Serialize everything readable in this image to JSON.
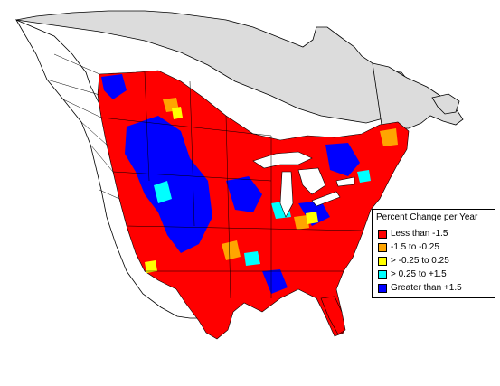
{
  "map": {
    "colors": {
      "canada_land": "#dcdcdc",
      "us_land": "#ffffff",
      "water": "#ffffff",
      "outline": "#000000"
    }
  },
  "legend": {
    "title": "Percent Change per Year",
    "items": [
      {
        "label": "Less than -1.5",
        "color": "#ff0000"
      },
      {
        "label": "-1.5 to -0.25",
        "color": "#ffa500"
      },
      {
        "label": "> -0.25 to 0.25",
        "color": "#ffff00"
      },
      {
        "label": "> 0.25 to +1.5",
        "color": "#00ffff"
      },
      {
        "label": "Greater than +1.5",
        "color": "#0000ff"
      }
    ]
  }
}
